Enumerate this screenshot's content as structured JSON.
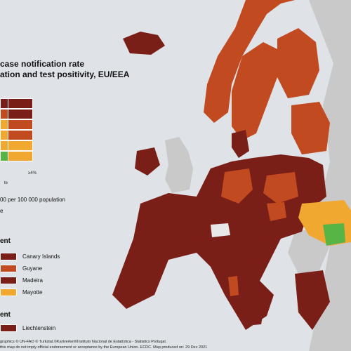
{
  "title": {
    "line1": "case notification rate",
    "line2": "ation and test positivity, EU/EEA"
  },
  "matrix": {
    "axis_tick_high": "≥4%",
    "axis_tick_low": "te"
  },
  "legend": {
    "rate_note": "00 per 100 000 population",
    "extra_note": "e"
  },
  "section1": {
    "title": "ent",
    "items": [
      {
        "label": "Canary Islands",
        "color": "#7a1f17"
      },
      {
        "label": "Guyane",
        "color": "#c24a20"
      },
      {
        "label": "Madeira",
        "color": "#7a1f17"
      },
      {
        "label": "Mayotte",
        "color": "#f0a830"
      }
    ]
  },
  "section2": {
    "title": "ent",
    "items": [
      {
        "label": "Liechtenstein",
        "color": "#7a1f17"
      }
    ]
  },
  "footer": {
    "line1": "graphics © UN-FAO © Turkstat.©Kartverket©Instituto Nacional de Estatística - Statistics Portugal.",
    "line2": "this map do not imply official endorsement or acceptance by the European Union. ECDC. Map produced on: 29 Dec 2021"
  },
  "colors": {
    "dark_red": "#7a1f17",
    "orange_red": "#c24a20",
    "orange": "#f0a830",
    "green": "#56b545",
    "grey_land": "#c9c9c9",
    "sea": "#dfe3e8"
  }
}
